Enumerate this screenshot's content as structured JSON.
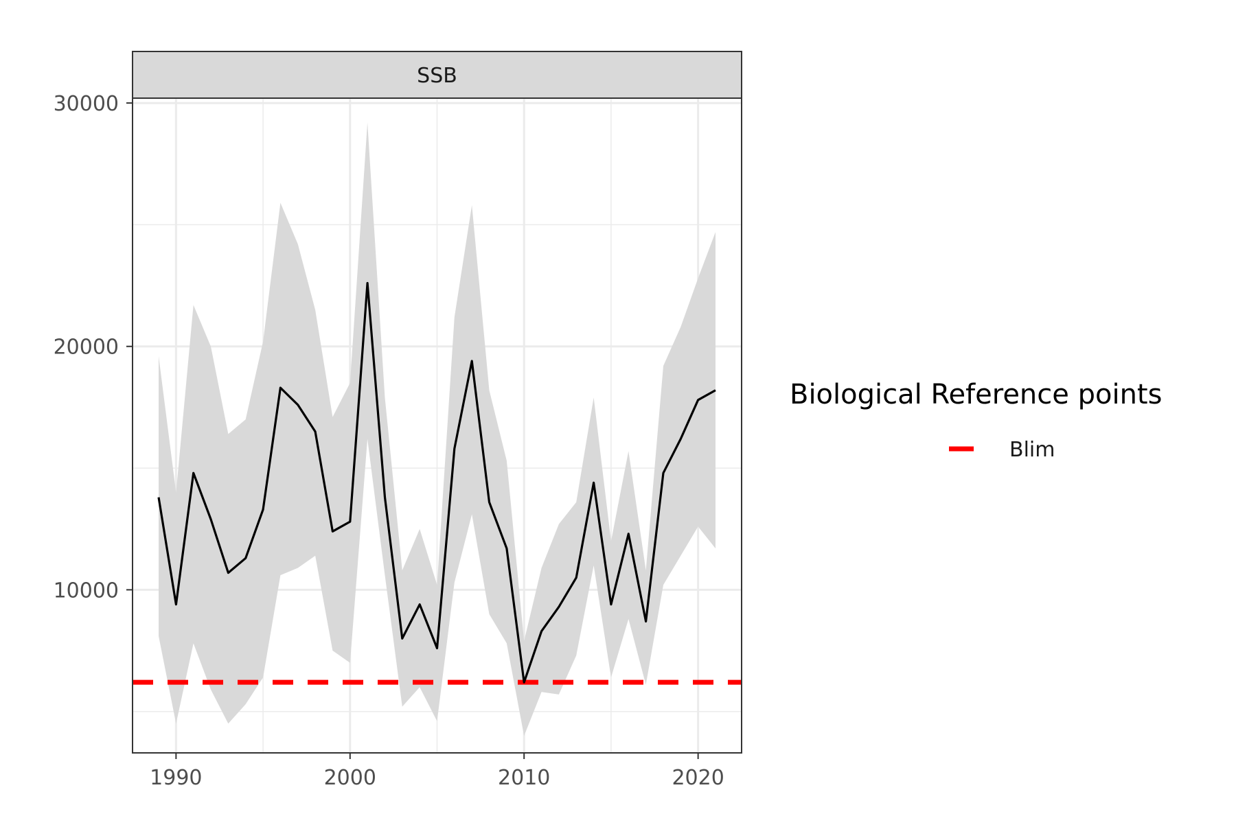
{
  "chart_data": {
    "type": "line",
    "facet_label": "SSB",
    "x": [
      1989,
      1990,
      1991,
      1992,
      1993,
      1994,
      1995,
      1996,
      1997,
      1998,
      1999,
      2000,
      2001,
      2002,
      2003,
      2004,
      2005,
      2006,
      2007,
      2008,
      2009,
      2010,
      2011,
      2012,
      2013,
      2014,
      2015,
      2016,
      2017,
      2018,
      2019,
      2020,
      2021
    ],
    "series": [
      {
        "values": [
          13800,
          9400,
          14800,
          12900,
          10700,
          11300,
          13300,
          18300,
          17600,
          16500,
          12400,
          12800,
          22600,
          13800,
          8000,
          9400,
          7600,
          15800,
          19400,
          13600,
          11700,
          6200,
          8300,
          9300,
          10500,
          14400,
          9400,
          12300,
          8700,
          14800,
          16200,
          17800,
          18200
        ],
        "lower": [
          8100,
          4500,
          7800,
          5900,
          4500,
          5300,
          6400,
          10600,
          10900,
          11400,
          7500,
          7000,
          16200,
          10600,
          5200,
          6000,
          4600,
          10300,
          13100,
          9000,
          7800,
          4000,
          5800,
          5700,
          7300,
          11000,
          6400,
          8800,
          6100,
          10200,
          11400,
          12600,
          11700
        ],
        "upper": [
          19600,
          14000,
          21700,
          20000,
          16400,
          17000,
          20200,
          25900,
          24200,
          21500,
          17100,
          18500,
          29200,
          17900,
          10800,
          12500,
          10200,
          21200,
          25800,
          18200,
          15300,
          7900,
          10900,
          12700,
          13600,
          17900,
          12000,
          15700,
          10800,
          19200,
          20800,
          22800,
          24700
        ]
      }
    ],
    "reference_lines": [
      {
        "name": "Blim",
        "value": 6200,
        "color": "#ff0000",
        "style": "dashed"
      }
    ],
    "line_color": "#000000",
    "band_color": "#d9d9d9",
    "strip_color": "#d9d9d9",
    "xlim": [
      1987.5,
      2022.5
    ],
    "ylim": [
      3300,
      30200
    ],
    "x_ticks": [
      1990,
      2000,
      2010,
      2020
    ],
    "y_ticks": [
      10000,
      20000,
      30000
    ],
    "grid": true,
    "legend": {
      "title": "Biological Reference points",
      "entries": [
        "Blim"
      ],
      "position": "right"
    }
  }
}
